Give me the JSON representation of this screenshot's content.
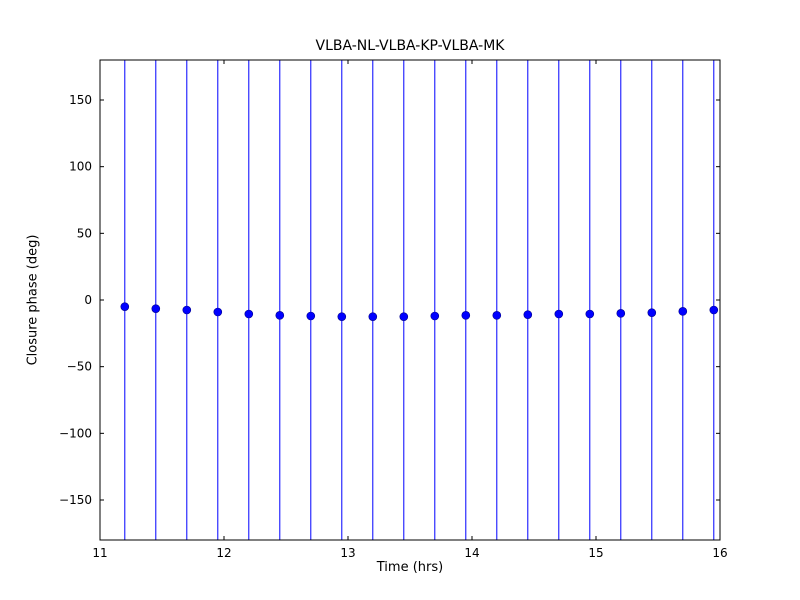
{
  "chart_data": {
    "type": "scatter",
    "title": "VLBA-NL-VLBA-KP-VLBA-MK",
    "xlabel": "Time (hrs)",
    "ylabel": "Closure phase (deg)",
    "xlim": [
      11,
      16
    ],
    "ylim": [
      -180,
      180
    ],
    "xticks": [
      11,
      12,
      13,
      14,
      15,
      16
    ],
    "xtick_labels": [
      "11",
      "12",
      "13",
      "14",
      "15",
      "16"
    ],
    "yticks": [
      -150,
      -100,
      -50,
      0,
      50,
      100,
      150
    ],
    "ytick_labels": [
      "−150",
      "−100",
      "−50",
      "0",
      "50",
      "100",
      "150"
    ],
    "grid": false,
    "legend": "none",
    "colors": {
      "marker": "#0000ff",
      "marker_edge": "#00008b",
      "error_bar": "#0000ff",
      "axis": "#000000",
      "background": "#ffffff"
    },
    "series": [
      {
        "name": "closure phase",
        "marker": "o",
        "x": [
          11.2,
          11.45,
          11.7,
          11.95,
          12.2,
          12.45,
          12.7,
          12.95,
          13.2,
          13.45,
          13.7,
          13.95,
          14.2,
          14.45,
          14.7,
          14.95,
          15.2,
          15.45,
          15.7,
          15.95
        ],
        "y": [
          -5.0,
          -6.5,
          -7.5,
          -9.0,
          -10.5,
          -11.5,
          -12.0,
          -12.5,
          -12.5,
          -12.5,
          -12.0,
          -11.5,
          -11.5,
          -11.0,
          -10.5,
          -10.5,
          -10.0,
          -9.5,
          -8.5,
          -7.5
        ],
        "yerr": 200
      }
    ]
  }
}
